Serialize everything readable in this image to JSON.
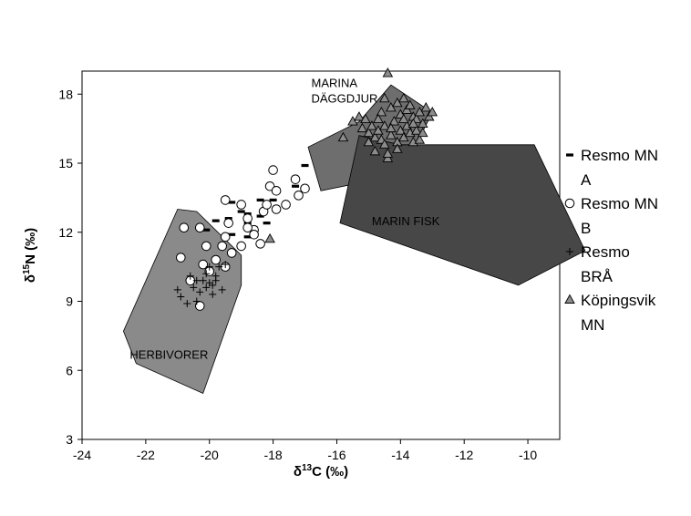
{
  "chart_data": {
    "type": "scatter",
    "xlabel": "δ13C (‰)",
    "ylabel": "δ15N (‰)",
    "xlim": [
      -24,
      -9
    ],
    "ylim": [
      3,
      19
    ],
    "xticks": [
      -24,
      -22,
      -20,
      -18,
      -16,
      -14,
      -12,
      -10
    ],
    "yticks": [
      3,
      6,
      9,
      12,
      15,
      18
    ],
    "grid": false,
    "legend_position": "right",
    "regions": [
      {
        "label_lines": [
          "HERBIVORER"
        ],
        "fill": "#8a8a8a",
        "label_at": [
          -22.5,
          6.5
        ],
        "polygon": [
          [
            -22.7,
            7.7
          ],
          [
            -21.0,
            13.0
          ],
          [
            -20.4,
            12.9
          ],
          [
            -19.0,
            11.0
          ],
          [
            -19.0,
            9.7
          ],
          [
            -20.2,
            5.0
          ],
          [
            -22.3,
            6.3
          ]
        ]
      },
      {
        "label_lines": [
          "MARINA",
          "DÄGGDJUR"
        ],
        "fill": "#6e6e6e",
        "label_at": [
          -16.8,
          18.3
        ],
        "polygon": [
          [
            -16.9,
            15.7
          ],
          [
            -15.3,
            16.8
          ],
          [
            -14.3,
            18.4
          ],
          [
            -13.0,
            17.2
          ],
          [
            -14.0,
            14.5
          ],
          [
            -16.5,
            13.8
          ]
        ]
      },
      {
        "label_lines": [
          "MARIN FISK"
        ],
        "fill": "#474747",
        "label_at": [
          -14.9,
          12.3
        ],
        "polygon": [
          [
            -15.3,
            16.2
          ],
          [
            -14.0,
            15.8
          ],
          [
            -9.8,
            15.8
          ],
          [
            -8.2,
            11.2
          ],
          [
            -10.3,
            9.7
          ],
          [
            -15.9,
            12.4
          ]
        ]
      }
    ],
    "series": [
      {
        "name": "Resmo MN A",
        "marker": "dash",
        "points": [
          [
            -19.3,
            13.3
          ],
          [
            -19.0,
            12.9
          ],
          [
            -18.8,
            12.4
          ],
          [
            -18.4,
            13.4
          ],
          [
            -18.4,
            12.7
          ],
          [
            -18.2,
            13.2
          ],
          [
            -18.0,
            13.4
          ],
          [
            -18.8,
            11.8
          ],
          [
            -18.6,
            12.2
          ],
          [
            -18.2,
            12.4
          ],
          [
            -19.4,
            12.6
          ],
          [
            -19.3,
            11.9
          ],
          [
            -17.3,
            14.0
          ],
          [
            -17.0,
            14.9
          ],
          [
            -20.1,
            12.1
          ],
          [
            -19.8,
            12.5
          ],
          [
            -18.8,
            12.8
          ]
        ]
      },
      {
        "name": "Resmo MN B",
        "marker": "circle",
        "points": [
          [
            -20.8,
            12.2
          ],
          [
            -20.3,
            12.2
          ],
          [
            -19.6,
            11.4
          ],
          [
            -19.5,
            11.8
          ],
          [
            -19.4,
            12.4
          ],
          [
            -19.0,
            11.4
          ],
          [
            -19.3,
            11.1
          ],
          [
            -19.5,
            13.4
          ],
          [
            -19.0,
            13.2
          ],
          [
            -18.8,
            12.6
          ],
          [
            -18.6,
            12.1
          ],
          [
            -18.4,
            11.5
          ],
          [
            -18.3,
            12.9
          ],
          [
            -18.2,
            13.2
          ],
          [
            -18.1,
            14.0
          ],
          [
            -18.0,
            14.7
          ],
          [
            -17.9,
            13.0
          ],
          [
            -17.9,
            13.8
          ],
          [
            -17.6,
            13.2
          ],
          [
            -17.3,
            14.3
          ],
          [
            -17.0,
            13.9
          ],
          [
            -17.2,
            13.6
          ],
          [
            -20.9,
            10.9
          ],
          [
            -20.6,
            9.9
          ],
          [
            -20.3,
            8.8
          ],
          [
            -20.1,
            11.4
          ],
          [
            -20.0,
            10.3
          ],
          [
            -19.8,
            10.8
          ],
          [
            -19.5,
            10.5
          ],
          [
            -20.2,
            10.6
          ],
          [
            -18.6,
            11.9
          ],
          [
            -18.8,
            12.2
          ]
        ]
      },
      {
        "name": "Resmo BRÅ",
        "marker": "plus",
        "points": [
          [
            -21.0,
            9.5
          ],
          [
            -20.9,
            9.2
          ],
          [
            -20.7,
            8.9
          ],
          [
            -20.5,
            9.6
          ],
          [
            -20.4,
            9.9
          ],
          [
            -20.2,
            9.9
          ],
          [
            -20.1,
            9.6
          ],
          [
            -20.0,
            9.8
          ],
          [
            -19.9,
            9.7
          ],
          [
            -19.8,
            10.1
          ],
          [
            -19.7,
            10.5
          ],
          [
            -19.5,
            10.6
          ],
          [
            -20.3,
            9.4
          ],
          [
            -20.0,
            10.5
          ],
          [
            -19.9,
            9.3
          ],
          [
            -19.6,
            9.5
          ],
          [
            -20.6,
            10.1
          ],
          [
            -20.4,
            9.0
          ],
          [
            -19.8,
            9.9
          ],
          [
            -20.1,
            10.2
          ]
        ]
      },
      {
        "name": "Köpingsvik MN",
        "marker": "triangle",
        "points": [
          [
            -14.4,
            18.9
          ],
          [
            -14.5,
            17.8
          ],
          [
            -14.3,
            17.4
          ],
          [
            -14.1,
            17.6
          ],
          [
            -14.0,
            17.1
          ],
          [
            -13.9,
            17.8
          ],
          [
            -13.8,
            17.3
          ],
          [
            -13.7,
            17.5
          ],
          [
            -13.6,
            17.0
          ],
          [
            -13.5,
            16.9
          ],
          [
            -13.4,
            17.2
          ],
          [
            -13.3,
            16.7
          ],
          [
            -13.2,
            17.4
          ],
          [
            -13.1,
            17.0
          ],
          [
            -13.0,
            17.2
          ],
          [
            -15.5,
            16.8
          ],
          [
            -15.3,
            17.0
          ],
          [
            -15.2,
            16.5
          ],
          [
            -15.1,
            16.9
          ],
          [
            -15.0,
            16.3
          ],
          [
            -14.9,
            16.6
          ],
          [
            -14.8,
            16.1
          ],
          [
            -14.7,
            16.4
          ],
          [
            -14.6,
            16.0
          ],
          [
            -14.5,
            15.8
          ],
          [
            -14.5,
            16.6
          ],
          [
            -14.3,
            16.2
          ],
          [
            -14.2,
            16.8
          ],
          [
            -14.1,
            15.9
          ],
          [
            -14.0,
            16.4
          ],
          [
            -13.9,
            16.1
          ],
          [
            -13.8,
            16.6
          ],
          [
            -13.7,
            16.3
          ],
          [
            -13.6,
            15.9
          ],
          [
            -13.5,
            16.4
          ],
          [
            -13.4,
            16.0
          ],
          [
            -13.3,
            16.3
          ],
          [
            -14.4,
            15.2
          ],
          [
            -14.1,
            15.6
          ],
          [
            -14.8,
            15.5
          ],
          [
            -15.8,
            16.1
          ],
          [
            -15.0,
            15.9
          ],
          [
            -14.6,
            17.2
          ],
          [
            -14.3,
            16.5
          ],
          [
            -13.9,
            16.9
          ],
          [
            -13.6,
            16.7
          ],
          [
            -18.1,
            11.7
          ],
          [
            -14.7,
            16.9
          ],
          [
            -14.4,
            15.4
          ]
        ]
      }
    ]
  }
}
